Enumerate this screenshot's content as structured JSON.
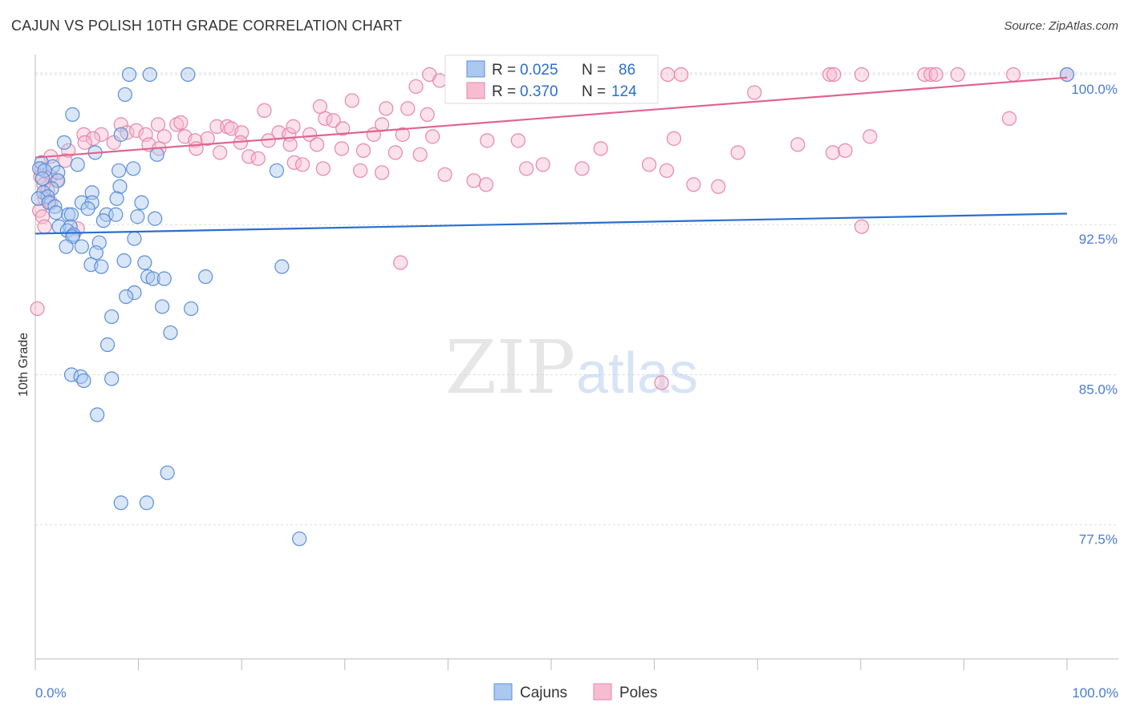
{
  "title": "CAJUN VS POLISH 10TH GRADE CORRELATION CHART",
  "source": "Source: ZipAtlas.com",
  "watermark": {
    "zip": "ZIP",
    "atlas": "atlas"
  },
  "colors": {
    "cajun_fill": "#aac8f0",
    "cajun_stroke": "#5b8fd8",
    "cajun_line": "#2a6fcf",
    "poles_fill": "#f7bcd0",
    "poles_stroke": "#e687a8",
    "poles_line": "#e0648f",
    "value_blue": "#2a6fcf",
    "grid": "#dddddd"
  },
  "legend": {
    "rows": [
      {
        "r_label": "R =",
        "r_value": "0.025",
        "n_label": "N =",
        "n_value": "86"
      },
      {
        "r_label": "R =",
        "r_value": "0.370",
        "n_label": "N =",
        "n_value": "124"
      }
    ]
  },
  "chart_data": {
    "type": "scatter",
    "ylabel": "10th Grade",
    "x_tick_labels": [
      "0.0%",
      "100.0%"
    ],
    "y_tick_labels": [
      "100.0%",
      "92.5%",
      "85.0%",
      "77.5%"
    ],
    "xlim": [
      0,
      100
    ],
    "ylim": [
      70.8,
      101.0
    ],
    "y_ticks": [
      100.0,
      92.5,
      85.0,
      77.5
    ],
    "legend_position": "top-center",
    "series": [
      {
        "name": "Cajuns",
        "r": 0.025,
        "n": 86,
        "trend": [
          [
            0,
            92.05
          ],
          [
            100,
            93.05
          ]
        ],
        "points": [
          [
            9.1,
            100
          ],
          [
            11.1,
            100
          ],
          [
            14.8,
            100
          ],
          [
            8.7,
            99
          ],
          [
            3.6,
            98
          ],
          [
            8.3,
            97
          ],
          [
            2.8,
            96.6
          ],
          [
            5.8,
            96.1
          ],
          [
            11.8,
            96
          ],
          [
            0.6,
            95.6
          ],
          [
            1.7,
            95.4
          ],
          [
            4.1,
            95.5
          ],
          [
            0.4,
            95.3
          ],
          [
            0.9,
            95.2
          ],
          [
            2.2,
            95.1
          ],
          [
            8.1,
            95.2
          ],
          [
            9.5,
            95.3
          ],
          [
            23.4,
            95.2
          ],
          [
            0.7,
            94.8
          ],
          [
            2.2,
            94.7
          ],
          [
            1.6,
            94.3
          ],
          [
            8.2,
            94.4
          ],
          [
            0.8,
            94.1
          ],
          [
            1.2,
            93.9
          ],
          [
            5.5,
            94.1
          ],
          [
            0.3,
            93.8
          ],
          [
            7.9,
            93.8
          ],
          [
            1.3,
            93.6
          ],
          [
            4.5,
            93.6
          ],
          [
            5.5,
            93.6
          ],
          [
            10.3,
            93.6
          ],
          [
            1.9,
            93.4
          ],
          [
            5.1,
            93.3
          ],
          [
            2,
            93.1
          ],
          [
            3.2,
            93
          ],
          [
            3.5,
            93
          ],
          [
            6.9,
            93
          ],
          [
            7.8,
            93
          ],
          [
            9.9,
            92.9
          ],
          [
            11.6,
            92.8
          ],
          [
            6.6,
            92.7
          ],
          [
            2.3,
            92.4
          ],
          [
            3.4,
            92.4
          ],
          [
            3.1,
            92.2
          ],
          [
            3.7,
            92
          ],
          [
            3.6,
            91.9
          ],
          [
            9.6,
            91.8
          ],
          [
            6.2,
            91.6
          ],
          [
            3,
            91.4
          ],
          [
            4.5,
            91.4
          ],
          [
            5.9,
            91.1
          ],
          [
            8.6,
            90.7
          ],
          [
            10.6,
            90.6
          ],
          [
            5.4,
            90.5
          ],
          [
            6.4,
            90.4
          ],
          [
            23.9,
            90.4
          ],
          [
            10.9,
            89.9
          ],
          [
            11.4,
            89.8
          ],
          [
            12.5,
            89.8
          ],
          [
            16.5,
            89.9
          ],
          [
            9.6,
            89.1
          ],
          [
            8.8,
            88.9
          ],
          [
            12.3,
            88.4
          ],
          [
            15.1,
            88.3
          ],
          [
            7.4,
            87.9
          ],
          [
            13.1,
            87.1
          ],
          [
            7,
            86.5
          ],
          [
            3.5,
            85
          ],
          [
            4.4,
            84.9
          ],
          [
            4.7,
            84.7
          ],
          [
            7.4,
            84.8
          ],
          [
            6,
            83
          ],
          [
            12.8,
            80.1
          ],
          [
            8.3,
            78.6
          ],
          [
            10.8,
            78.6
          ],
          [
            25.6,
            76.8
          ],
          [
            100,
            100
          ]
        ]
      },
      {
        "name": "Poles",
        "r": 0.37,
        "n": 124,
        "trend": [
          [
            0,
            95.85
          ],
          [
            100,
            99.85
          ]
        ],
        "points": [
          [
            38.2,
            100
          ],
          [
            41.2,
            100
          ],
          [
            47.2,
            100
          ],
          [
            49.6,
            100
          ],
          [
            61.3,
            100
          ],
          [
            62.6,
            100
          ],
          [
            77,
            100
          ],
          [
            77.4,
            100
          ],
          [
            80.1,
            100
          ],
          [
            86.2,
            100
          ],
          [
            86.8,
            100
          ],
          [
            87.3,
            100
          ],
          [
            89.4,
            100
          ],
          [
            94.8,
            100
          ],
          [
            100,
            100
          ],
          [
            36.9,
            99.4
          ],
          [
            39.2,
            99.7
          ],
          [
            43.6,
            99.3
          ],
          [
            54.5,
            99.8
          ],
          [
            69.7,
            99.1
          ],
          [
            30.7,
            98.7
          ],
          [
            27.6,
            98.4
          ],
          [
            36.1,
            98.3
          ],
          [
            22.2,
            98.2
          ],
          [
            34,
            98.3
          ],
          [
            38,
            98
          ],
          [
            28.1,
            97.8
          ],
          [
            28.9,
            97.7
          ],
          [
            8.3,
            97.5
          ],
          [
            11.9,
            97.5
          ],
          [
            13.7,
            97.5
          ],
          [
            14.1,
            97.6
          ],
          [
            17.6,
            97.4
          ],
          [
            18.6,
            97.4
          ],
          [
            19,
            97.3
          ],
          [
            20,
            97.1
          ],
          [
            23.6,
            97.1
          ],
          [
            24.6,
            97
          ],
          [
            25,
            97.4
          ],
          [
            26.6,
            97
          ],
          [
            29.8,
            97.3
          ],
          [
            32.8,
            97
          ],
          [
            33.6,
            97.5
          ],
          [
            35.6,
            97
          ],
          [
            38.5,
            96.9
          ],
          [
            43.8,
            96.7
          ],
          [
            46.8,
            96.7
          ],
          [
            54.8,
            96.3
          ],
          [
            61.9,
            96.8
          ],
          [
            68.1,
            96.1
          ],
          [
            73.9,
            96.5
          ],
          [
            77.3,
            96.1
          ],
          [
            78.5,
            96.2
          ],
          [
            80.9,
            96.9
          ],
          [
            94.4,
            97.8
          ],
          [
            4.7,
            97
          ],
          [
            6.4,
            97
          ],
          [
            8.9,
            97.1
          ],
          [
            9.8,
            97.2
          ],
          [
            10.7,
            97
          ],
          [
            12.5,
            96.9
          ],
          [
            14.5,
            96.9
          ],
          [
            15.5,
            96.7
          ],
          [
            16.7,
            96.8
          ],
          [
            19.9,
            96.6
          ],
          [
            22.6,
            96.7
          ],
          [
            24.7,
            96.5
          ],
          [
            27.3,
            96.5
          ],
          [
            29.7,
            96.3
          ],
          [
            31.8,
            96.2
          ],
          [
            34.9,
            96.1
          ],
          [
            37.3,
            96
          ],
          [
            5.6,
            96.8
          ],
          [
            7.6,
            96.6
          ],
          [
            11,
            96.5
          ],
          [
            12,
            96.3
          ],
          [
            15.6,
            96.3
          ],
          [
            17.9,
            96.1
          ],
          [
            20.7,
            95.9
          ],
          [
            21.6,
            95.8
          ],
          [
            25.1,
            95.6
          ],
          [
            25.9,
            95.5
          ],
          [
            27.9,
            95.3
          ],
          [
            31.5,
            95.2
          ],
          [
            33.6,
            95.1
          ],
          [
            39.7,
            95
          ],
          [
            42.5,
            94.7
          ],
          [
            43.7,
            94.5
          ],
          [
            47.6,
            95.3
          ],
          [
            49.2,
            95.5
          ],
          [
            53,
            95.3
          ],
          [
            59.5,
            95.5
          ],
          [
            61.2,
            95.2
          ],
          [
            63.8,
            94.5
          ],
          [
            66.2,
            94.4
          ],
          [
            4.8,
            96.6
          ],
          [
            3.2,
            96.2
          ],
          [
            1.5,
            95.9
          ],
          [
            2.9,
            95.7
          ],
          [
            0.6,
            95.3
          ],
          [
            0.5,
            94.9
          ],
          [
            1.5,
            94.9
          ],
          [
            2.1,
            94.7
          ],
          [
            0.8,
            94.5
          ],
          [
            1.2,
            94.2
          ],
          [
            0.9,
            93.8
          ],
          [
            1.5,
            93.6
          ],
          [
            0.4,
            93.2
          ],
          [
            0.7,
            92.9
          ],
          [
            0.9,
            92.4
          ],
          [
            4.1,
            92.3
          ],
          [
            0.2,
            88.3
          ],
          [
            35.4,
            90.6
          ],
          [
            80.1,
            92.4
          ],
          [
            60.7,
            84.6
          ]
        ]
      }
    ]
  }
}
